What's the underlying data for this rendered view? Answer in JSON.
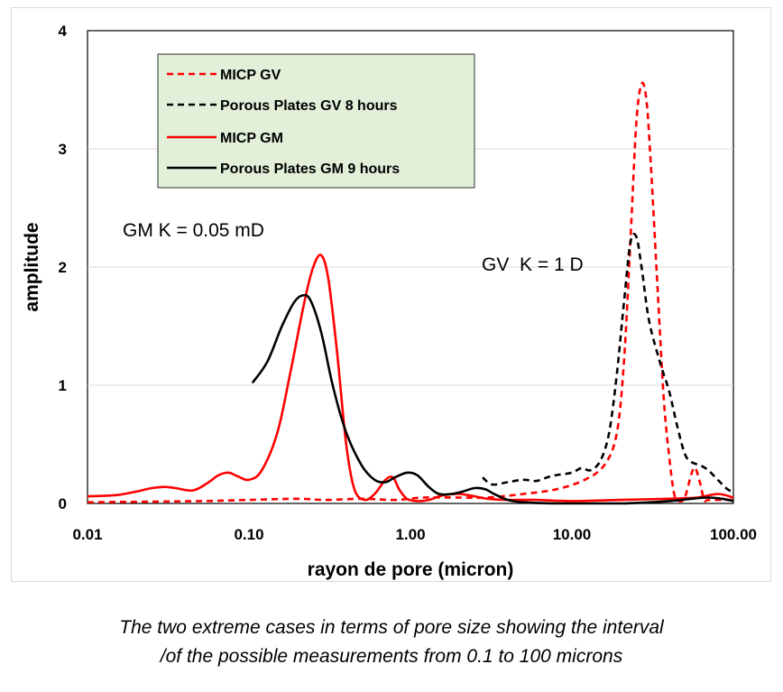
{
  "chart_data": {
    "type": "line",
    "xlabel": "rayon de pore (micron)",
    "ylabel": "amplitude",
    "xscale": "log",
    "xlim": [
      0.01,
      100
    ],
    "ylim": [
      0,
      4
    ],
    "xticks": [
      "0.01",
      "0.10",
      "1.00",
      "10.00",
      "100.00"
    ],
    "yticks": [
      "0",
      "1",
      "2",
      "3",
      "4"
    ],
    "legend_position": "top-left",
    "annotations": [
      {
        "id": "gm",
        "text": "GM K = 0.05 mD"
      },
      {
        "id": "gv",
        "text": "GV  K = 1 D"
      }
    ],
    "series": [
      {
        "name": "MICP GV",
        "color": "#ff0000",
        "dashed": true,
        "points": [
          [
            0.01,
            0.01
          ],
          [
            0.05,
            0.02
          ],
          [
            0.1,
            0.03
          ],
          [
            0.2,
            0.04
          ],
          [
            0.3,
            0.03
          ],
          [
            0.5,
            0.04
          ],
          [
            0.8,
            0.03
          ],
          [
            1.2,
            0.05
          ],
          [
            2,
            0.05
          ],
          [
            3,
            0.05
          ],
          [
            5,
            0.08
          ],
          [
            8,
            0.12
          ],
          [
            12,
            0.2
          ],
          [
            16,
            0.33
          ],
          [
            19,
            0.6
          ],
          [
            21,
            1.2
          ],
          [
            23,
            2.2
          ],
          [
            25,
            3.2
          ],
          [
            27,
            3.55
          ],
          [
            29,
            3.4
          ],
          [
            31,
            2.8
          ],
          [
            34,
            1.8
          ],
          [
            37,
            0.9
          ],
          [
            40,
            0.4
          ],
          [
            43,
            0.08
          ],
          [
            46,
            0.02
          ],
          [
            50,
            0.05
          ],
          [
            55,
            0.25
          ],
          [
            58,
            0.3
          ],
          [
            62,
            0.18
          ],
          [
            66,
            0.03
          ],
          [
            70,
            0.03
          ],
          [
            85,
            0.03
          ],
          [
            100,
            0.03
          ]
        ]
      },
      {
        "name": "Porous Plates GV 8 hours",
        "color": "#000000",
        "dashed": true,
        "points": [
          [
            2.8,
            0.22
          ],
          [
            3.2,
            0.16
          ],
          [
            4,
            0.18
          ],
          [
            5,
            0.2
          ],
          [
            6,
            0.19
          ],
          [
            7,
            0.22
          ],
          [
            8,
            0.24
          ],
          [
            10,
            0.26
          ],
          [
            11.5,
            0.3
          ],
          [
            13,
            0.28
          ],
          [
            15,
            0.36
          ],
          [
            17,
            0.6
          ],
          [
            19,
            1.1
          ],
          [
            21,
            1.7
          ],
          [
            23,
            2.2
          ],
          [
            25,
            2.26
          ],
          [
            27,
            2.0
          ],
          [
            30,
            1.55
          ],
          [
            35,
            1.2
          ],
          [
            40,
            0.95
          ],
          [
            45,
            0.65
          ],
          [
            50,
            0.42
          ],
          [
            55,
            0.35
          ],
          [
            63,
            0.32
          ],
          [
            70,
            0.28
          ],
          [
            80,
            0.2
          ],
          [
            92,
            0.12
          ],
          [
            100,
            0.1
          ]
        ]
      },
      {
        "name": "MICP GM",
        "color": "#ff0000",
        "dashed": false,
        "points": [
          [
            0.01,
            0.06
          ],
          [
            0.015,
            0.07
          ],
          [
            0.02,
            0.1
          ],
          [
            0.025,
            0.13
          ],
          [
            0.03,
            0.14
          ],
          [
            0.035,
            0.13
          ],
          [
            0.045,
            0.11
          ],
          [
            0.055,
            0.17
          ],
          [
            0.065,
            0.24
          ],
          [
            0.075,
            0.26
          ],
          [
            0.085,
            0.23
          ],
          [
            0.1,
            0.2
          ],
          [
            0.12,
            0.28
          ],
          [
            0.15,
            0.6
          ],
          [
            0.18,
            1.1
          ],
          [
            0.22,
            1.7
          ],
          [
            0.25,
            2.0
          ],
          [
            0.28,
            2.1
          ],
          [
            0.31,
            1.9
          ],
          [
            0.35,
            1.3
          ],
          [
            0.4,
            0.5
          ],
          [
            0.45,
            0.12
          ],
          [
            0.52,
            0.03
          ],
          [
            0.6,
            0.08
          ],
          [
            0.7,
            0.2
          ],
          [
            0.78,
            0.22
          ],
          [
            0.85,
            0.12
          ],
          [
            0.95,
            0.04
          ],
          [
            1.1,
            0.02
          ],
          [
            1.3,
            0.03
          ],
          [
            1.6,
            0.07
          ],
          [
            2,
            0.08
          ],
          [
            2.5,
            0.06
          ],
          [
            3,
            0.04
          ],
          [
            4,
            0.03
          ],
          [
            6,
            0.03
          ],
          [
            10,
            0.02
          ],
          [
            20,
            0.03
          ],
          [
            40,
            0.04
          ],
          [
            60,
            0.05
          ],
          [
            80,
            0.08
          ],
          [
            100,
            0.05
          ]
        ]
      },
      {
        "name": "Porous Plates GM 9 hours",
        "color": "#000000",
        "dashed": false,
        "points": [
          [
            0.105,
            1.02
          ],
          [
            0.13,
            1.2
          ],
          [
            0.16,
            1.5
          ],
          [
            0.19,
            1.7
          ],
          [
            0.215,
            1.76
          ],
          [
            0.24,
            1.72
          ],
          [
            0.28,
            1.45
          ],
          [
            0.33,
            1.0
          ],
          [
            0.4,
            0.6
          ],
          [
            0.5,
            0.32
          ],
          [
            0.6,
            0.2
          ],
          [
            0.7,
            0.18
          ],
          [
            0.8,
            0.22
          ],
          [
            0.95,
            0.26
          ],
          [
            1.1,
            0.24
          ],
          [
            1.3,
            0.14
          ],
          [
            1.5,
            0.08
          ],
          [
            1.8,
            0.08
          ],
          [
            2.1,
            0.1
          ],
          [
            2.5,
            0.13
          ],
          [
            2.9,
            0.12
          ],
          [
            3.3,
            0.08
          ],
          [
            4,
            0.03
          ],
          [
            5,
            0.01
          ],
          [
            8,
            0.0
          ],
          [
            20,
            0.0
          ],
          [
            40,
            0.02
          ],
          [
            55,
            0.04
          ],
          [
            70,
            0.05
          ],
          [
            85,
            0.04
          ],
          [
            100,
            0.02
          ]
        ]
      }
    ]
  },
  "caption": {
    "line1": "The two extreme cases in terms of pore size showing the interval",
    "line2": "/of the possible measurements from 0.1 to 100 microns"
  }
}
